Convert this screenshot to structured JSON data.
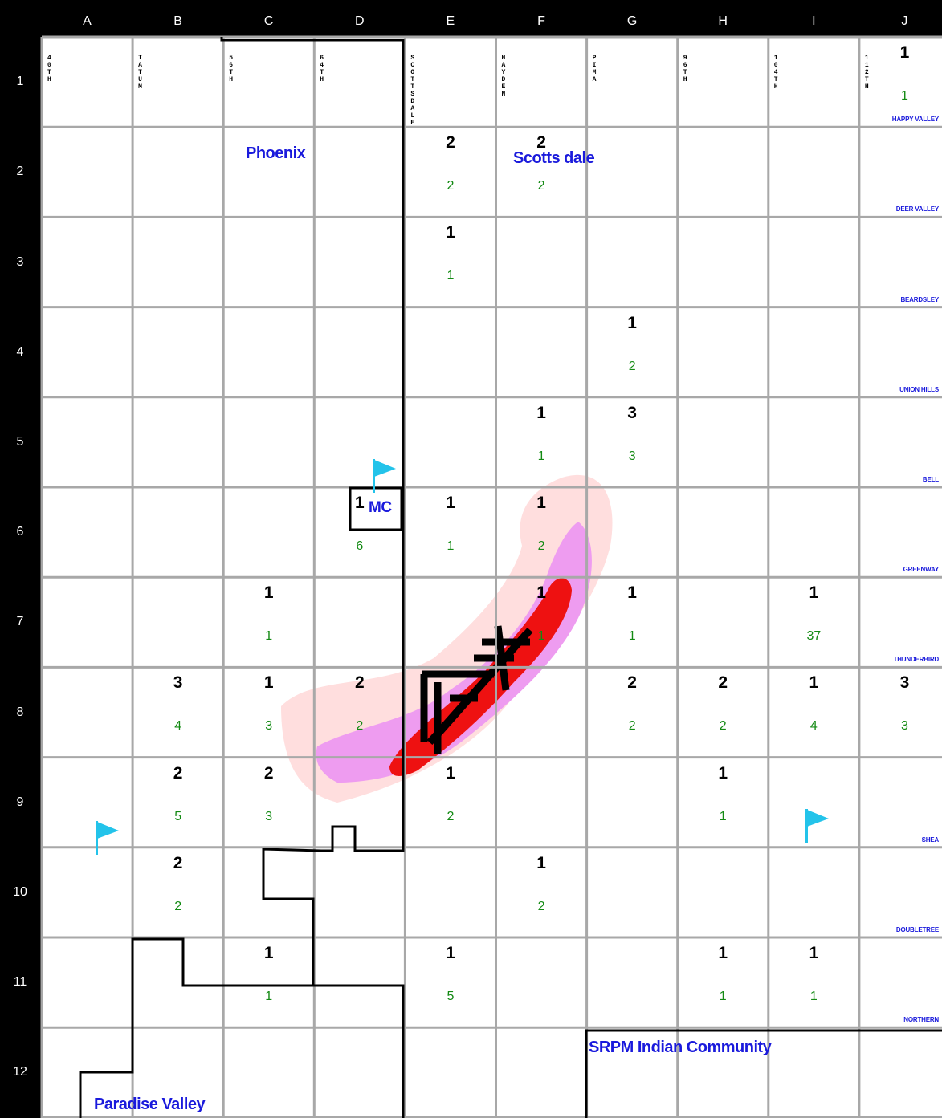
{
  "columns": [
    "A",
    "B",
    "C",
    "D",
    "E",
    "F",
    "G",
    "H",
    "I",
    "J"
  ],
  "rows": [
    "1",
    "2",
    "3",
    "4",
    "5",
    "6",
    "7",
    "8",
    "9",
    "10",
    "11",
    "12"
  ],
  "streets_vertical": [
    {
      "col": 0,
      "text": "40TH",
      "blue": false
    },
    {
      "col": 1,
      "text": "TATUM",
      "blue": false
    },
    {
      "col": 2,
      "text": "56TH",
      "blue": false
    },
    {
      "col": 3,
      "text": "64TH",
      "blue": false
    },
    {
      "col": 4,
      "text": "SCOTTSDALE",
      "blue": false
    },
    {
      "col": 5,
      "text": "HAYDEN",
      "blue": false
    },
    {
      "col": 6,
      "text": "PIMA",
      "blue": false
    },
    {
      "col": 7,
      "text": "96TH",
      "blue": false
    },
    {
      "col": 8,
      "text": "104TH",
      "blue": false
    },
    {
      "col": 9,
      "text": "112TH",
      "blue": false
    }
  ],
  "streets_horizontal": [
    {
      "row": 1,
      "text": "HAPPY VALLEY"
    },
    {
      "row": 2,
      "text": "DEER VALLEY"
    },
    {
      "row": 3,
      "text": "BEARDSLEY"
    },
    {
      "row": 4,
      "text": "UNION HILLS"
    },
    {
      "row": 5,
      "text": "BELL"
    },
    {
      "row": 6,
      "text": "GREENWAY"
    },
    {
      "row": 7,
      "text": "THUNDERBIRD"
    },
    {
      "row": 9,
      "text": "SHEA"
    },
    {
      "row": 10,
      "text": "DOUBLETREE"
    },
    {
      "row": 11,
      "text": "NORTHERN"
    }
  ],
  "cells": [
    {
      "col": 9,
      "row": 0,
      "top": "1",
      "bottom": "1"
    },
    {
      "col": 4,
      "row": 1,
      "top": "2",
      "bottom": "2"
    },
    {
      "col": 5,
      "row": 1,
      "top": "2",
      "bottom": "2"
    },
    {
      "col": 4,
      "row": 2,
      "top": "1",
      "bottom": "1"
    },
    {
      "col": 6,
      "row": 3,
      "top": "1",
      "bottom": "2"
    },
    {
      "col": 5,
      "row": 4,
      "top": "1",
      "bottom": "1"
    },
    {
      "col": 6,
      "row": 4,
      "top": "3",
      "bottom": "3"
    },
    {
      "col": 3,
      "row": 5,
      "top": "1",
      "bottom": "6"
    },
    {
      "col": 4,
      "row": 5,
      "top": "1",
      "bottom": "1"
    },
    {
      "col": 5,
      "row": 5,
      "top": "1",
      "bottom": "2"
    },
    {
      "col": 2,
      "row": 6,
      "top": "1",
      "bottom": "1"
    },
    {
      "col": 5,
      "row": 6,
      "top": "1",
      "bottom": "1"
    },
    {
      "col": 6,
      "row": 6,
      "top": "1",
      "bottom": "1"
    },
    {
      "col": 8,
      "row": 6,
      "top": "1",
      "bottom": "37"
    },
    {
      "col": 1,
      "row": 7,
      "top": "3",
      "bottom": "4"
    },
    {
      "col": 2,
      "row": 7,
      "top": "1",
      "bottom": "3"
    },
    {
      "col": 3,
      "row": 7,
      "top": "2",
      "bottom": "2"
    },
    {
      "col": 6,
      "row": 7,
      "top": "2",
      "bottom": "2"
    },
    {
      "col": 7,
      "row": 7,
      "top": "2",
      "bottom": "2"
    },
    {
      "col": 8,
      "row": 7,
      "top": "1",
      "bottom": "4"
    },
    {
      "col": 9,
      "row": 7,
      "top": "3",
      "bottom": "3"
    },
    {
      "col": 1,
      "row": 8,
      "top": "2",
      "bottom": "5"
    },
    {
      "col": 2,
      "row": 8,
      "top": "2",
      "bottom": "3"
    },
    {
      "col": 4,
      "row": 8,
      "top": "1",
      "bottom": "2"
    },
    {
      "col": 7,
      "row": 8,
      "top": "1",
      "bottom": "1"
    },
    {
      "col": 1,
      "row": 9,
      "top": "2",
      "bottom": "2"
    },
    {
      "col": 5,
      "row": 9,
      "top": "1",
      "bottom": "2"
    },
    {
      "col": 2,
      "row": 10,
      "top": "1",
      "bottom": "1"
    },
    {
      "col": 4,
      "row": 10,
      "top": "1",
      "bottom": "5"
    },
    {
      "col": 7,
      "row": 10,
      "top": "1",
      "bottom": "1"
    },
    {
      "col": 8,
      "row": 10,
      "top": "1",
      "bottom": "1"
    }
  ],
  "places": {
    "phoenix": "Phoenix",
    "scottsdale": "Scotts dale",
    "mc": "MC",
    "srpm": "SRPM Indian Community",
    "paradise_valley": "Paradise Valley"
  },
  "flags": [
    "flag-a9",
    "flag-d5",
    "flag-i9"
  ],
  "colors": {
    "grid_line": "#a8a8a8",
    "count_top": "#000000",
    "count_bottom": "#138a13",
    "place_label": "#1a1adc",
    "flag": "#23c3ea",
    "density_low": "#ffdede",
    "density_mid": "#ee9cf0",
    "density_high": "#ee1111"
  }
}
